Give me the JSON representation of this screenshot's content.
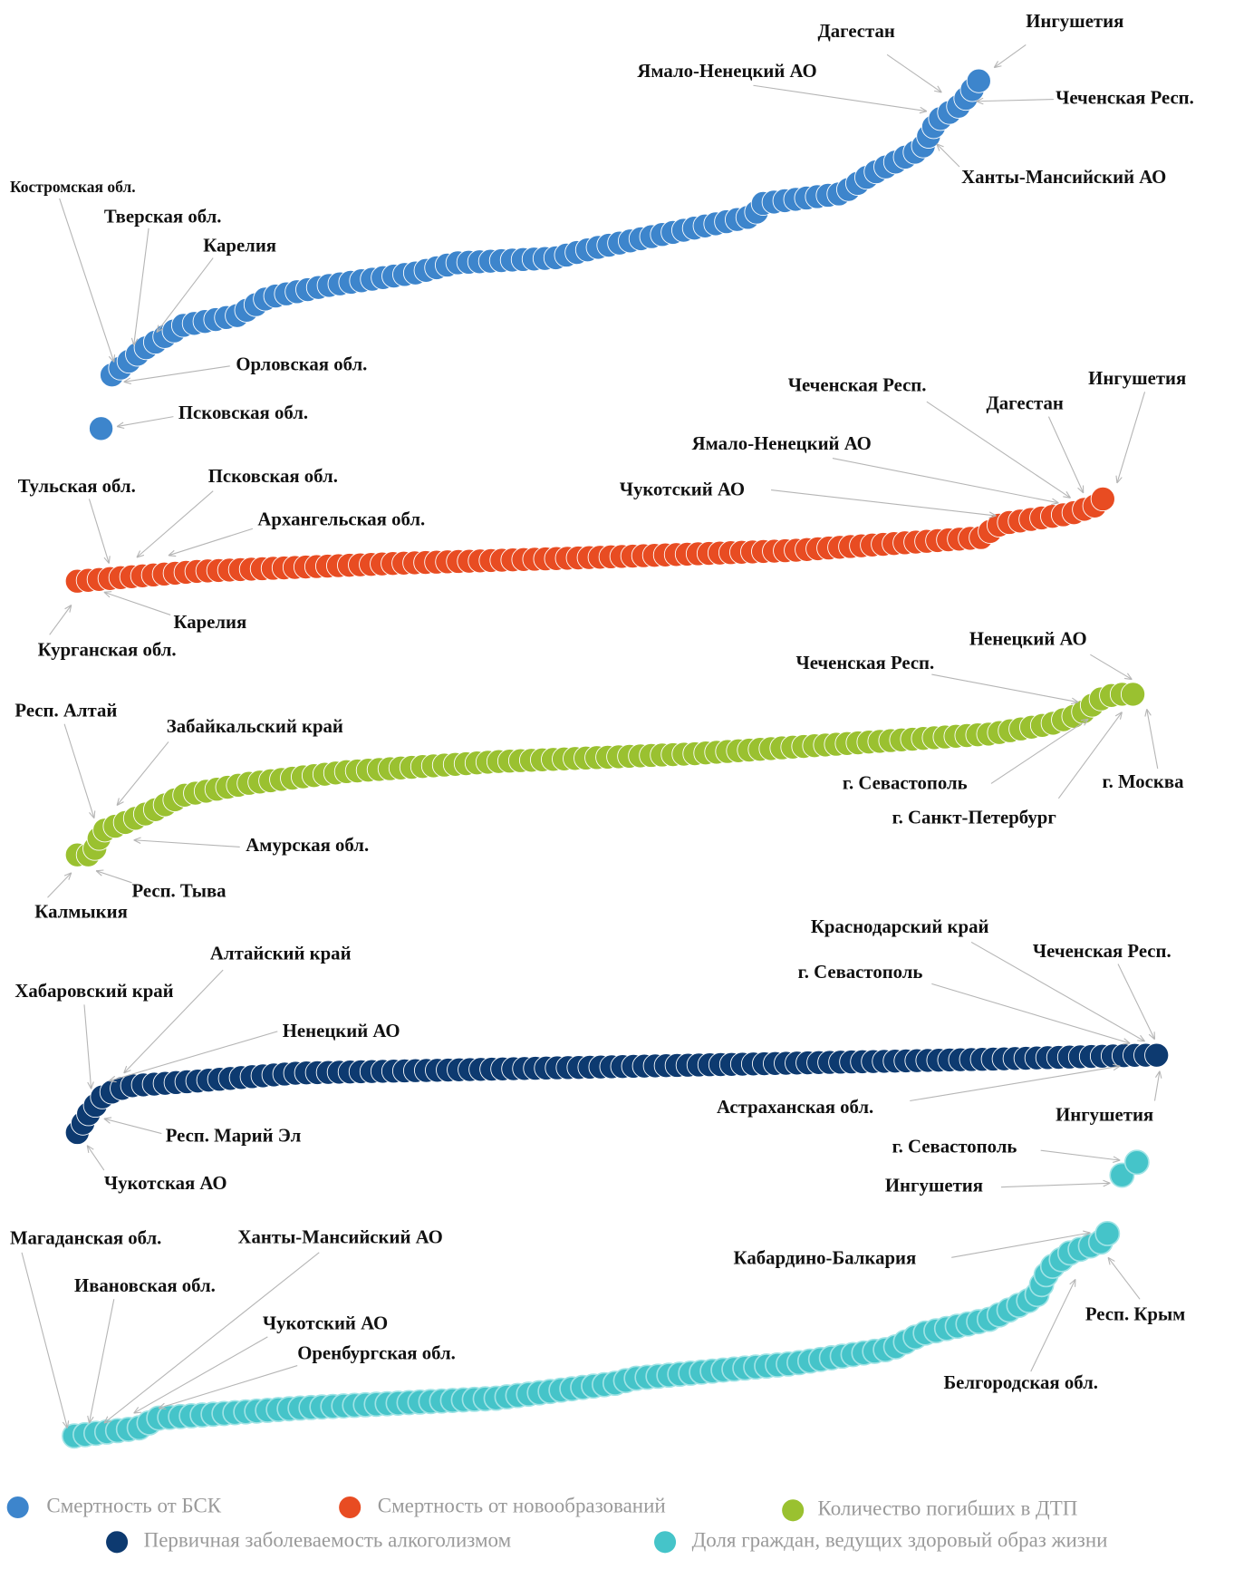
{
  "series": [
    {
      "name": "Смертность от БСК",
      "color": "#3d85cc",
      "annotations": [
        "Костромская обл.",
        "Тверская обл.",
        "Карелия",
        "Орловская обл.",
        "Псковская обл.",
        "Дагестан",
        "Ямало-Ненецкий АО",
        "Ингушетия",
        "Чеченская Респ.",
        "Ханты-Мансийский АО"
      ]
    },
    {
      "name": "Смертность от новообразований",
      "color": "#e84c22",
      "annotations": [
        "Чеченская Респ.",
        "Дагестан",
        "Ингушетия",
        "Ямало-Ненецкий АО",
        "Чукотский АО",
        "Тульская обл.",
        "Псковская обл.",
        "Архангельская обл.",
        "Карелия",
        "Курганская обл."
      ]
    },
    {
      "name": "Количество погибших в ДТП",
      "color": "#9ac130",
      "annotations": [
        "Ненецкий АО",
        "Чеченская Респ.",
        "Респ. Алтай",
        "Забайкальский край",
        "г. Севастополь",
        "г. Москва",
        "г. Санкт-Петербург",
        "Амурская обл.",
        "Респ. Тыва",
        "Калмыкия"
      ]
    },
    {
      "name": "Первичная заболеваемость алкоголизмом",
      "color": "#0d3a70",
      "annotations": [
        "Краснодарский край",
        "Чеченская Респ.",
        "г. Севастополь",
        "Алтайский край",
        "Хабаровский край",
        "Ненецкий АО",
        "Астраханская обл.",
        "Ингушетия",
        "Респ. Марий Эл",
        "Чукотская АО"
      ]
    },
    {
      "name": "Доля граждан, ведущих здоровый образ жизни",
      "color": "#45c4c9",
      "annotations": [
        "г. Севастополь",
        "Ингушетия",
        "Магаданская обл.",
        "Ханты-Мансийский АО",
        "Ивановская обл.",
        "Кабардино-Балкария",
        "Чукотский АО",
        "Оренбургская обл.",
        "Респ. Крым",
        "Белгородская обл."
      ]
    }
  ]
}
